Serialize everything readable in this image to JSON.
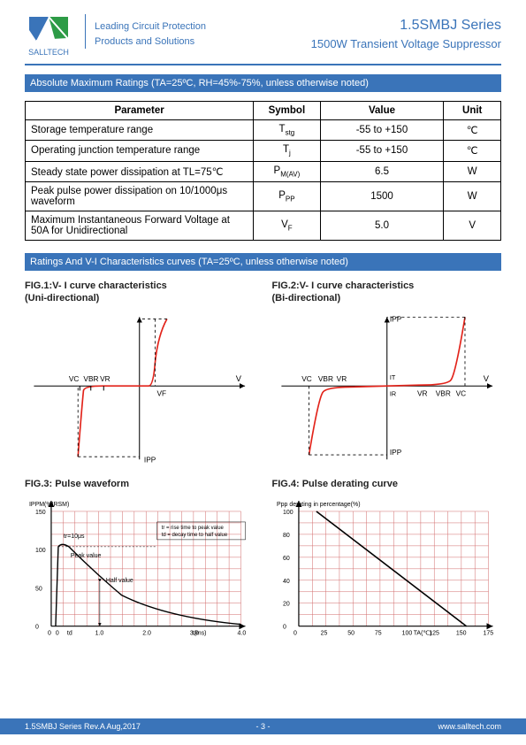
{
  "header": {
    "brand": "SALLTECH",
    "tag1": "Leading Circuit Protection",
    "tag2": "Products and Solutions",
    "series": "1.5SMBJ  Series",
    "subtitle": "1500W  Transient  Voltage  Suppressor"
  },
  "sections": {
    "absmax": "Absolute Maximum Ratings (TA=25ºC, RH=45%-75%, unless otherwise noted)",
    "curves": "Ratings And V-I Characteristics curves (TA=25ºC, unless otherwise noted)"
  },
  "table": {
    "headers": [
      "Parameter",
      "Symbol",
      "Value",
      "Unit"
    ],
    "rows": [
      {
        "param": "Storage temperature range",
        "symbol": "Tstg",
        "sub": "stg",
        "value": "-55 to +150",
        "unit": "℃"
      },
      {
        "param": "Operating junction temperature range",
        "symbol": "Tj",
        "sub": "j",
        "value": "-55 to +150",
        "unit": "℃"
      },
      {
        "param": "Steady state power dissipation at TL=75℃",
        "symbol": "PM(AV)",
        "sub": "M(AV)",
        "value": "6.5",
        "unit": "W"
      },
      {
        "param": "Peak pulse power dissipation on 10/1000μs waveform",
        "symbol": "PPP",
        "sub": "PP",
        "value": "1500",
        "unit": "W"
      },
      {
        "param": "Maximum Instantaneous Forward Voltage at 50A for Unidirectional",
        "symbol": "VF",
        "sub": "F",
        "value": "5.0",
        "unit": "V"
      }
    ]
  },
  "figs": {
    "fig1": {
      "title": "FIG.1:V- I curve characteristics",
      "sub": "(Uni-directional)"
    },
    "fig2": {
      "title": "FIG.2:V- I curve characteristics",
      "sub": "(Bi-directional)"
    },
    "fig3": {
      "title": "FIG.3: Pulse waveform",
      "ylabel": "IPPM(%IRSM)",
      "xlabel": "t(ms)",
      "yticks": [
        0,
        50,
        100,
        150
      ],
      "xticks": [
        "0",
        "1.0",
        "2.0",
        "3.0",
        "4.0"
      ],
      "notes": [
        "tr=10μs",
        "Peak value",
        "Half value",
        "tr = rise time to peak value",
        "td = decay time to half value"
      ],
      "curve_color": "#000000",
      "grid_color": "#d26a6a",
      "axis_color": "#000"
    },
    "fig4": {
      "title": "FIG.4: Pulse derating curve",
      "ylabel": "Ppp derating in percentage(%)",
      "xlabel": "TA(℃)",
      "yticks": [
        0,
        20,
        40,
        60,
        80,
        100
      ],
      "xticks": [
        0,
        25,
        50,
        75,
        100,
        125,
        150,
        175
      ],
      "line_color": "#000000",
      "grid_color": "#d26a6a",
      "axis_color": "#000"
    }
  },
  "vi_labels": {
    "vc": "VC",
    "vbr": "VBR",
    "vr": "VR",
    "vf": "VF",
    "v": "V",
    "ipp": "IPP",
    "ir": "IR",
    "it": "IT"
  },
  "colors": {
    "brand": "#3a74b9",
    "curve_red": "#e2231a",
    "grid_pink": "#d26a6a",
    "black": "#000000",
    "logo_green": "#2d9b46"
  },
  "footer": {
    "left": "1.5SMBJ Series Rev.A Aug,2017",
    "center": "- 3 -",
    "right": "www.salltech.com"
  }
}
